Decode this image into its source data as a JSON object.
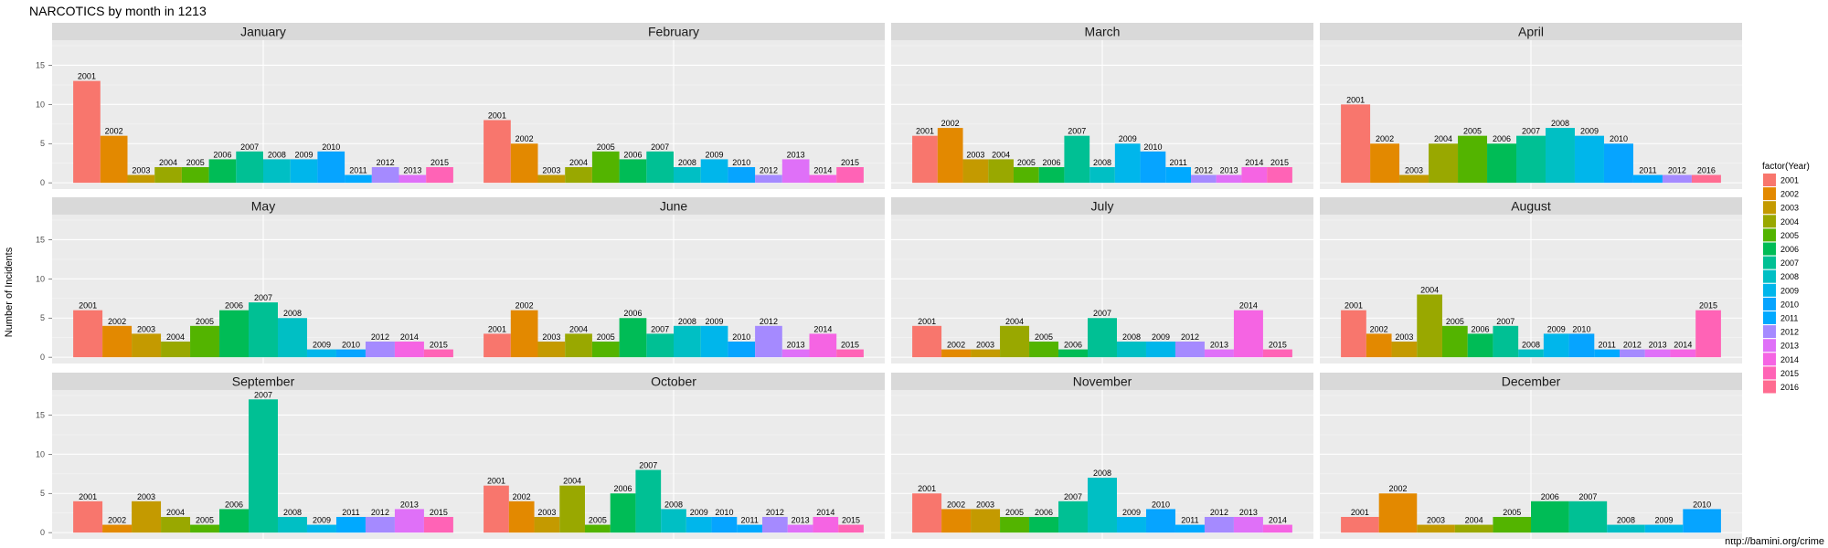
{
  "chart_data": {
    "type": "bar",
    "title": "NARCOTICS by month in 1213",
    "ylabel": "Number of Incidents",
    "xlabel": "",
    "caption": "http://bamini.org/crime",
    "ylim": [
      -0.8,
      18.2
    ],
    "yticks": [
      0,
      5,
      10,
      15
    ],
    "grid": true,
    "legend": {
      "title": "factor(Year)",
      "placement": "right",
      "entries": [
        "2001",
        "2002",
        "2003",
        "2004",
        "2005",
        "2006",
        "2007",
        "2008",
        "2009",
        "2010",
        "2011",
        "2012",
        "2013",
        "2014",
        "2015",
        "2016"
      ]
    },
    "colors": {
      "2001": "#F8766D",
      "2002": "#E38900",
      "2003": "#C49A00",
      "2004": "#99A800",
      "2005": "#53B400",
      "2006": "#00BC56",
      "2007": "#00C094",
      "2008": "#00BFC4",
      "2009": "#00B6EB",
      "2010": "#06A4FF",
      "2011": "#00A9FF",
      "2012": "#A58AFF",
      "2013": "#DF70F8",
      "2014": "#F564E3",
      "2015": "#FF63B6",
      "2016": "#FF6C91"
    },
    "panels": [
      {
        "month": "January",
        "bars": [
          {
            "year": "2001",
            "value": 13
          },
          {
            "year": "2002",
            "value": 6
          },
          {
            "year": "2003",
            "value": 1
          },
          {
            "year": "2004",
            "value": 2
          },
          {
            "year": "2005",
            "value": 2
          },
          {
            "year": "2006",
            "value": 3
          },
          {
            "year": "2007",
            "value": 4
          },
          {
            "year": "2008",
            "value": 3
          },
          {
            "year": "2009",
            "value": 3
          },
          {
            "year": "2010",
            "value": 4
          },
          {
            "year": "2011",
            "value": 1
          },
          {
            "year": "2012",
            "value": 2
          },
          {
            "year": "2013",
            "value": 1
          },
          {
            "year": "2015",
            "value": 2
          }
        ]
      },
      {
        "month": "February",
        "bars": [
          {
            "year": "2001",
            "value": 8
          },
          {
            "year": "2002",
            "value": 5
          },
          {
            "year": "2003",
            "value": 1
          },
          {
            "year": "2004",
            "value": 2
          },
          {
            "year": "2005",
            "value": 4
          },
          {
            "year": "2006",
            "value": 3
          },
          {
            "year": "2007",
            "value": 4
          },
          {
            "year": "2008",
            "value": 2
          },
          {
            "year": "2009",
            "value": 3
          },
          {
            "year": "2010",
            "value": 2
          },
          {
            "year": "2012",
            "value": 1
          },
          {
            "year": "2013",
            "value": 3
          },
          {
            "year": "2014",
            "value": 1
          },
          {
            "year": "2015",
            "value": 2
          }
        ]
      },
      {
        "month": "March",
        "bars": [
          {
            "year": "2001",
            "value": 6
          },
          {
            "year": "2002",
            "value": 7
          },
          {
            "year": "2003",
            "value": 3
          },
          {
            "year": "2004",
            "value": 3
          },
          {
            "year": "2005",
            "value": 2
          },
          {
            "year": "2006",
            "value": 2
          },
          {
            "year": "2007",
            "value": 6
          },
          {
            "year": "2008",
            "value": 2
          },
          {
            "year": "2009",
            "value": 5
          },
          {
            "year": "2010",
            "value": 4
          },
          {
            "year": "2011",
            "value": 2
          },
          {
            "year": "2012",
            "value": 1
          },
          {
            "year": "2013",
            "value": 1
          },
          {
            "year": "2014",
            "value": 2
          },
          {
            "year": "2015",
            "value": 2
          }
        ]
      },
      {
        "month": "April",
        "bars": [
          {
            "year": "2001",
            "value": 10
          },
          {
            "year": "2002",
            "value": 5
          },
          {
            "year": "2003",
            "value": 1
          },
          {
            "year": "2004",
            "value": 5
          },
          {
            "year": "2005",
            "value": 6
          },
          {
            "year": "2006",
            "value": 5
          },
          {
            "year": "2007",
            "value": 6
          },
          {
            "year": "2008",
            "value": 7
          },
          {
            "year": "2009",
            "value": 6
          },
          {
            "year": "2010",
            "value": 5
          },
          {
            "year": "2011",
            "value": 1
          },
          {
            "year": "2012",
            "value": 1
          },
          {
            "year": "2016",
            "value": 1
          }
        ]
      },
      {
        "month": "May",
        "bars": [
          {
            "year": "2001",
            "value": 6
          },
          {
            "year": "2002",
            "value": 4
          },
          {
            "year": "2003",
            "value": 3
          },
          {
            "year": "2004",
            "value": 2
          },
          {
            "year": "2005",
            "value": 4
          },
          {
            "year": "2006",
            "value": 6
          },
          {
            "year": "2007",
            "value": 7
          },
          {
            "year": "2008",
            "value": 5
          },
          {
            "year": "2009",
            "value": 1
          },
          {
            "year": "2010",
            "value": 1
          },
          {
            "year": "2012",
            "value": 2
          },
          {
            "year": "2014",
            "value": 2
          },
          {
            "year": "2015",
            "value": 1
          }
        ]
      },
      {
        "month": "June",
        "bars": [
          {
            "year": "2001",
            "value": 3
          },
          {
            "year": "2002",
            "value": 6
          },
          {
            "year": "2003",
            "value": 2
          },
          {
            "year": "2004",
            "value": 3
          },
          {
            "year": "2005",
            "value": 2
          },
          {
            "year": "2006",
            "value": 5
          },
          {
            "year": "2007",
            "value": 3
          },
          {
            "year": "2008",
            "value": 4
          },
          {
            "year": "2009",
            "value": 4
          },
          {
            "year": "2010",
            "value": 2
          },
          {
            "year": "2012",
            "value": 4
          },
          {
            "year": "2013",
            "value": 1
          },
          {
            "year": "2014",
            "value": 3
          },
          {
            "year": "2015",
            "value": 1
          }
        ]
      },
      {
        "month": "July",
        "bars": [
          {
            "year": "2001",
            "value": 4
          },
          {
            "year": "2002",
            "value": 1
          },
          {
            "year": "2003",
            "value": 1
          },
          {
            "year": "2004",
            "value": 4
          },
          {
            "year": "2005",
            "value": 2
          },
          {
            "year": "2006",
            "value": 1
          },
          {
            "year": "2007",
            "value": 5
          },
          {
            "year": "2008",
            "value": 2
          },
          {
            "year": "2009",
            "value": 2
          },
          {
            "year": "2012",
            "value": 2
          },
          {
            "year": "2013",
            "value": 1
          },
          {
            "year": "2014",
            "value": 6
          },
          {
            "year": "2015",
            "value": 1
          }
        ]
      },
      {
        "month": "August",
        "bars": [
          {
            "year": "2001",
            "value": 6
          },
          {
            "year": "2002",
            "value": 3
          },
          {
            "year": "2003",
            "value": 2
          },
          {
            "year": "2004",
            "value": 8
          },
          {
            "year": "2005",
            "value": 4
          },
          {
            "year": "2006",
            "value": 3
          },
          {
            "year": "2007",
            "value": 4
          },
          {
            "year": "2008",
            "value": 1
          },
          {
            "year": "2009",
            "value": 3
          },
          {
            "year": "2010",
            "value": 3
          },
          {
            "year": "2011",
            "value": 1
          },
          {
            "year": "2012",
            "value": 1
          },
          {
            "year": "2013",
            "value": 1
          },
          {
            "year": "2014",
            "value": 1
          },
          {
            "year": "2015",
            "value": 6
          }
        ]
      },
      {
        "month": "September",
        "bars": [
          {
            "year": "2001",
            "value": 4
          },
          {
            "year": "2002",
            "value": 1
          },
          {
            "year": "2003",
            "value": 4
          },
          {
            "year": "2004",
            "value": 2
          },
          {
            "year": "2005",
            "value": 1
          },
          {
            "year": "2006",
            "value": 3
          },
          {
            "year": "2007",
            "value": 17
          },
          {
            "year": "2008",
            "value": 2
          },
          {
            "year": "2009",
            "value": 1
          },
          {
            "year": "2011",
            "value": 2
          },
          {
            "year": "2012",
            "value": 2
          },
          {
            "year": "2013",
            "value": 3
          },
          {
            "year": "2015",
            "value": 2
          }
        ]
      },
      {
        "month": "October",
        "bars": [
          {
            "year": "2001",
            "value": 6
          },
          {
            "year": "2002",
            "value": 4
          },
          {
            "year": "2003",
            "value": 2
          },
          {
            "year": "2004",
            "value": 6
          },
          {
            "year": "2005",
            "value": 1
          },
          {
            "year": "2006",
            "value": 5
          },
          {
            "year": "2007",
            "value": 8
          },
          {
            "year": "2008",
            "value": 3
          },
          {
            "year": "2009",
            "value": 2
          },
          {
            "year": "2010",
            "value": 2
          },
          {
            "year": "2011",
            "value": 1
          },
          {
            "year": "2012",
            "value": 2
          },
          {
            "year": "2013",
            "value": 1
          },
          {
            "year": "2014",
            "value": 2
          },
          {
            "year": "2015",
            "value": 1
          }
        ]
      },
      {
        "month": "November",
        "bars": [
          {
            "year": "2001",
            "value": 5
          },
          {
            "year": "2002",
            "value": 3
          },
          {
            "year": "2003",
            "value": 3
          },
          {
            "year": "2005",
            "value": 2
          },
          {
            "year": "2006",
            "value": 2
          },
          {
            "year": "2007",
            "value": 4
          },
          {
            "year": "2008",
            "value": 7
          },
          {
            "year": "2009",
            "value": 2
          },
          {
            "year": "2010",
            "value": 3
          },
          {
            "year": "2011",
            "value": 1
          },
          {
            "year": "2012",
            "value": 2
          },
          {
            "year": "2013",
            "value": 2
          },
          {
            "year": "2014",
            "value": 1
          }
        ]
      },
      {
        "month": "December",
        "bars": [
          {
            "year": "2001",
            "value": 2
          },
          {
            "year": "2002",
            "value": 5
          },
          {
            "year": "2003",
            "value": 1
          },
          {
            "year": "2004",
            "value": 1
          },
          {
            "year": "2005",
            "value": 2
          },
          {
            "year": "2006",
            "value": 4
          },
          {
            "year": "2007",
            "value": 4
          },
          {
            "year": "2008",
            "value": 1
          },
          {
            "year": "2009",
            "value": 1
          },
          {
            "year": "2010",
            "value": 3
          }
        ]
      }
    ]
  }
}
